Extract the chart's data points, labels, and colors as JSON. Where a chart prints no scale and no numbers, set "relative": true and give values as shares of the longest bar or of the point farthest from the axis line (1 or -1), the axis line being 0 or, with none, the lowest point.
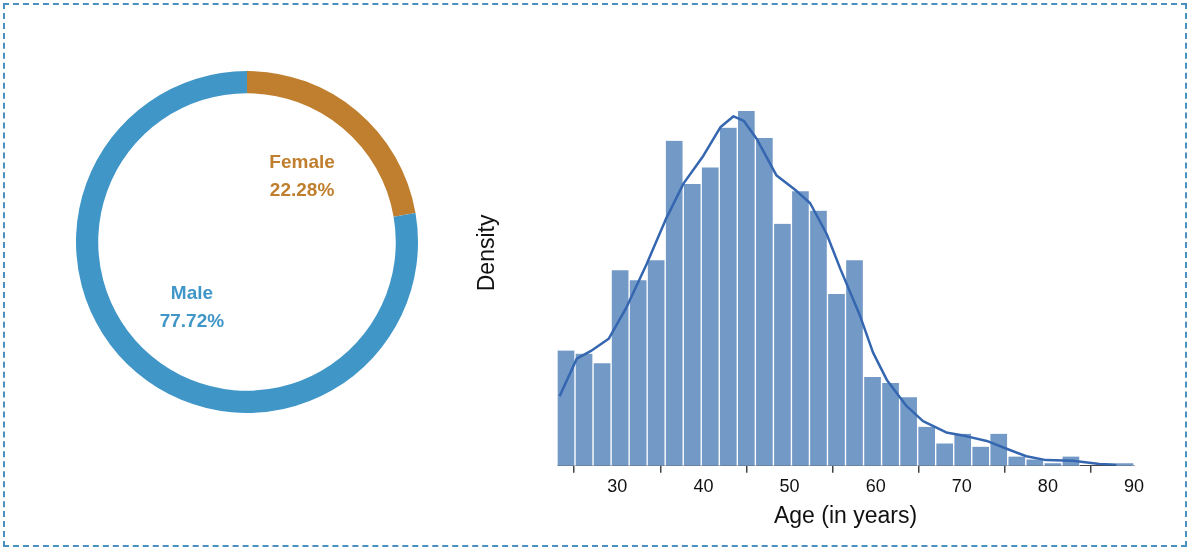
{
  "chart_data": [
    {
      "type": "donut",
      "categories": [
        "Female",
        "Male"
      ],
      "values": [
        22.28,
        77.72
      ],
      "colors": [
        "#c07f2e",
        "#4196c8"
      ],
      "value_labels": [
        "22.28%",
        "77.72%"
      ]
    },
    {
      "type": "histogram",
      "xlabel": "Age (in years)",
      "ylabel": "Density",
      "relative": true,
      "xlim": [
        23,
        90
      ],
      "xticks": [
        30,
        40,
        50,
        60,
        70,
        80,
        90
      ],
      "series": [
        {
          "type": "histogram",
          "color": "#7399c6",
          "bins": [
            23,
            25.09,
            27.19,
            29.28,
            31.38,
            33.47,
            35.56,
            37.66,
            39.75,
            41.84,
            43.94,
            46.03,
            48.13,
            50.22,
            52.31,
            54.41,
            56.5,
            58.59,
            60.69,
            62.78,
            64.88,
            66.97,
            69.06,
            71.16,
            73.25,
            75.34,
            77.44,
            79.53,
            81.63,
            83.72,
            85.81,
            87.91,
            90
          ],
          "values": [
            0.325,
            0.316,
            0.289,
            0.551,
            0.523,
            0.579,
            0.916,
            0.794,
            0.841,
            0.953,
            1,
            0.924,
            0.682,
            0.774,
            0.719,
            0.484,
            0.579,
            0.25,
            0.233,
            0.193,
            0.11,
            0.063,
            0.09,
            0.054,
            0.09,
            0.026,
            0.018,
            0.007,
            0.026,
            0,
            0,
            0.007
          ]
        },
        {
          "type": "line",
          "color": "#3566b0",
          "x": [
            23.3,
            25.3,
            26.9,
            29.0,
            31.1,
            33.4,
            35.6,
            37.7,
            40.0,
            42.0,
            43.5,
            44.7,
            46.2,
            48.5,
            50.8,
            52.4,
            54.3,
            55.9,
            58.2,
            59.7,
            61.3,
            63.6,
            65.5,
            68.2,
            70.6,
            72.9,
            75.2,
            77.5,
            79.8,
            82.9,
            86.0,
            88.0
          ],
          "values": [
            0.196,
            0.302,
            0.323,
            0.358,
            0.448,
            0.568,
            0.693,
            0.796,
            0.874,
            0.955,
            0.985,
            0.972,
            0.921,
            0.818,
            0.775,
            0.74,
            0.654,
            0.555,
            0.422,
            0.319,
            0.242,
            0.168,
            0.126,
            0.094,
            0.083,
            0.07,
            0.048,
            0.027,
            0.016,
            0.014,
            0.005,
            0.003
          ]
        }
      ]
    }
  ]
}
